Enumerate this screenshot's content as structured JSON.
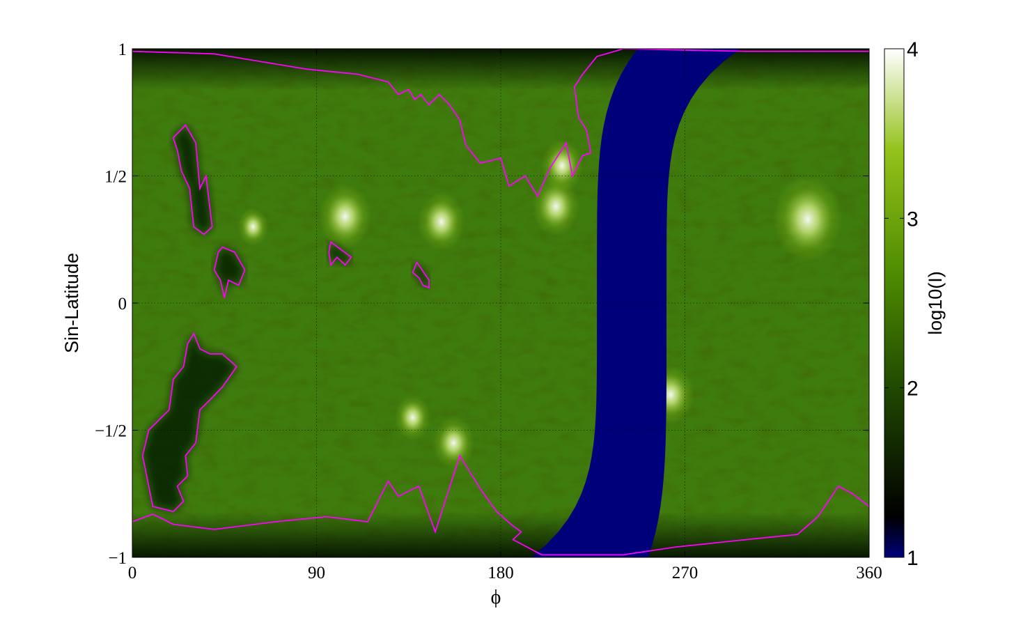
{
  "chart_data": {
    "type": "heatmap",
    "title": "",
    "xlabel": "ϕ",
    "ylabel": "Sin-Latitude",
    "xlim": [
      0,
      360
    ],
    "ylim": [
      -1,
      1
    ],
    "x_ticks": [
      "0",
      "90",
      "180",
      "270",
      "360"
    ],
    "x_tick_values": [
      0,
      90,
      180,
      270,
      360
    ],
    "y_ticks": [
      "1",
      "1/2",
      "0",
      "−1/2",
      "−1"
    ],
    "y_tick_values": [
      1,
      0.5,
      0,
      -0.5,
      -1
    ],
    "grid": true,
    "colorbar": {
      "label": "log10(I)",
      "range": [
        1,
        4
      ],
      "ticks": [
        "1",
        "2",
        "3",
        "4"
      ],
      "tick_values": [
        1,
        2,
        3,
        4
      ],
      "colors": [
        "#00007a",
        "#000000",
        "#1f4800",
        "#4d8a00",
        "#93c21a",
        "#ffffff"
      ]
    },
    "missing_data_band": {
      "color": "#00007a",
      "phi_at_south_pole": [
        195,
        252
      ],
      "phi_at_equator": [
        227,
        261
      ],
      "phi_at_north_pole": [
        247,
        297
      ]
    },
    "bright_regions": [
      {
        "phi": 330,
        "sinlat": 0.33,
        "level": 3.9
      },
      {
        "phi": 104,
        "sinlat": 0.34,
        "level": 3.6
      },
      {
        "phi": 151,
        "sinlat": 0.32,
        "level": 3.5
      },
      {
        "phi": 207,
        "sinlat": 0.38,
        "level": 3.5
      },
      {
        "phi": 210,
        "sinlat": 0.54,
        "level": 3.4
      },
      {
        "phi": 137,
        "sinlat": -0.45,
        "level": 3.3
      },
      {
        "phi": 157,
        "sinlat": -0.55,
        "level": 3.4
      },
      {
        "phi": 263,
        "sinlat": -0.36,
        "level": 3.5
      },
      {
        "phi": 59,
        "sinlat": 0.3,
        "level": 3.2
      }
    ],
    "coronal_hole_contour_color": "#ff00ff",
    "contours": [
      {
        "name": "north-polar-hole",
        "points": [
          [
            0,
            0.99
          ],
          [
            40,
            0.98
          ],
          [
            70,
            0.94
          ],
          [
            85,
            0.92
          ],
          [
            110,
            0.9
          ],
          [
            125,
            0.87
          ],
          [
            130,
            0.82
          ],
          [
            135,
            0.84
          ],
          [
            138,
            0.8
          ],
          [
            141,
            0.82
          ],
          [
            145,
            0.78
          ],
          [
            150,
            0.82
          ],
          [
            155,
            0.78
          ],
          [
            160,
            0.72
          ],
          [
            163,
            0.62
          ],
          [
            170,
            0.55
          ],
          [
            180,
            0.57
          ],
          [
            184,
            0.46
          ],
          [
            192,
            0.5
          ],
          [
            198,
            0.42
          ],
          [
            204,
            0.53
          ],
          [
            208,
            0.58
          ],
          [
            212,
            0.63
          ],
          [
            215,
            0.5
          ],
          [
            220,
            0.58
          ],
          [
            224,
            0.59
          ],
          [
            222,
            0.68
          ],
          [
            218,
            0.73
          ],
          [
            216,
            0.85
          ],
          [
            220,
            0.9
          ],
          [
            227,
            0.97
          ],
          [
            240,
            1.0
          ],
          [
            300,
            0.99
          ],
          [
            360,
            0.99
          ]
        ]
      },
      {
        "name": "midlat-hole-left",
        "points": [
          [
            20,
            0.65
          ],
          [
            26,
            0.7
          ],
          [
            31,
            0.63
          ],
          [
            33,
            0.45
          ],
          [
            36,
            0.5
          ],
          [
            39,
            0.3
          ],
          [
            35,
            0.27
          ],
          [
            30,
            0.3
          ],
          [
            28,
            0.45
          ],
          [
            24,
            0.52
          ],
          [
            22,
            0.6
          ],
          [
            20,
            0.65
          ]
        ]
      },
      {
        "name": "eq-hole-left",
        "points": [
          [
            44,
            0.22
          ],
          [
            50,
            0.2
          ],
          [
            55,
            0.13
          ],
          [
            52,
            0.07
          ],
          [
            47,
            0.09
          ],
          [
            45,
            0.02
          ],
          [
            43,
            0.09
          ],
          [
            40,
            0.13
          ],
          [
            42,
            0.2
          ],
          [
            44,
            0.22
          ]
        ]
      },
      {
        "name": "small-hole-mid",
        "points": [
          [
            97,
            0.24
          ],
          [
            102,
            0.21
          ],
          [
            107,
            0.18
          ],
          [
            104,
            0.15
          ],
          [
            100,
            0.18
          ],
          [
            97,
            0.15
          ],
          [
            96,
            0.2
          ],
          [
            97,
            0.24
          ]
        ]
      },
      {
        "name": "small-hole-right",
        "points": [
          [
            139,
            0.16
          ],
          [
            145,
            0.09
          ],
          [
            145,
            0.06
          ],
          [
            142,
            0.07
          ],
          [
            140,
            0.1
          ],
          [
            137,
            0.12
          ],
          [
            139,
            0.16
          ]
        ]
      },
      {
        "name": "south-west-hole",
        "points": [
          [
            27,
            -0.16
          ],
          [
            30,
            -0.12
          ],
          [
            33,
            -0.18
          ],
          [
            38,
            -0.2
          ],
          [
            44,
            -0.2
          ],
          [
            51,
            -0.25
          ],
          [
            44,
            -0.33
          ],
          [
            38,
            -0.38
          ],
          [
            33,
            -0.42
          ],
          [
            31,
            -0.55
          ],
          [
            26,
            -0.6
          ],
          [
            27,
            -0.68
          ],
          [
            22,
            -0.72
          ],
          [
            25,
            -0.78
          ],
          [
            20,
            -0.82
          ],
          [
            10,
            -0.8
          ],
          [
            5,
            -0.6
          ],
          [
            8,
            -0.5
          ],
          [
            18,
            -0.42
          ],
          [
            20,
            -0.3
          ],
          [
            25,
            -0.25
          ],
          [
            27,
            -0.16
          ]
        ]
      },
      {
        "name": "south-polar-hole",
        "points": [
          [
            0,
            -0.86
          ],
          [
            10,
            -0.83
          ],
          [
            20,
            -0.87
          ],
          [
            40,
            -0.89
          ],
          [
            70,
            -0.86
          ],
          [
            95,
            -0.84
          ],
          [
            115,
            -0.86
          ],
          [
            125,
            -0.7
          ],
          [
            130,
            -0.76
          ],
          [
            140,
            -0.72
          ],
          [
            148,
            -0.9
          ],
          [
            160,
            -0.6
          ],
          [
            170,
            -0.73
          ],
          [
            178,
            -0.82
          ],
          [
            185,
            -0.87
          ],
          [
            190,
            -0.9
          ],
          [
            186,
            -0.93
          ],
          [
            200,
            -0.99
          ],
          [
            240,
            -0.99
          ],
          [
            265,
            -0.96
          ],
          [
            300,
            -0.93
          ],
          [
            325,
            -0.91
          ],
          [
            335,
            -0.84
          ],
          [
            345,
            -0.72
          ],
          [
            352,
            -0.75
          ],
          [
            360,
            -0.8
          ]
        ]
      }
    ]
  }
}
